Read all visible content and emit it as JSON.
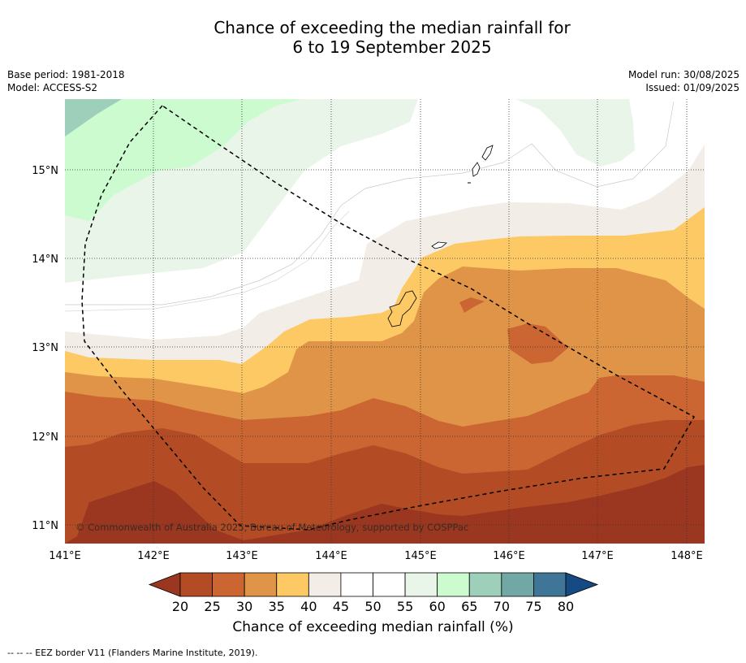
{
  "header": {
    "title_line1": "Chance of exceeding the median rainfall for",
    "title_line2": "6 to 19 September 2025",
    "base_period": "Base period: 1981-2018",
    "model": "Model: ACCESS-S2",
    "model_run": "Model run: 30/08/2025",
    "issued": "Issued: 01/09/2025"
  },
  "map": {
    "lon_ticks": [
      "141°E",
      "142°E",
      "143°E",
      "144°E",
      "145°E",
      "146°E",
      "147°E",
      "148°E"
    ],
    "lat_ticks": [
      "15°N",
      "14°N",
      "13°N",
      "12°N",
      "11°N"
    ],
    "copyright": "© Commonwealth of Australia 2025, Bureau of Meteorology, supported by COSPPac",
    "grid": true,
    "islands": [
      "Guam",
      "Rota",
      "Tinian",
      "Saipan"
    ]
  },
  "colorbar": {
    "title": "Chance of exceeding median rainfall (%)",
    "ticks": [
      "20",
      "25",
      "30",
      "35",
      "40",
      "45",
      "50",
      "55",
      "60",
      "65",
      "70",
      "75",
      "80"
    ],
    "colors": [
      "#9b3720",
      "#b34b25",
      "#cb6632",
      "#e09447",
      "#fdc964",
      "#f2ede6",
      "#ffffff",
      "#ffffff",
      "#eaf5ea",
      "#cbfbce",
      "#9dcfba",
      "#71a7a5",
      "#3f7698",
      "#154a83"
    ],
    "under_color": "#9b3720",
    "over_color": "#154a83"
  },
  "footnote": "-- -- -- EEZ border V11 (Flanders Marine Institute, 2019)."
}
